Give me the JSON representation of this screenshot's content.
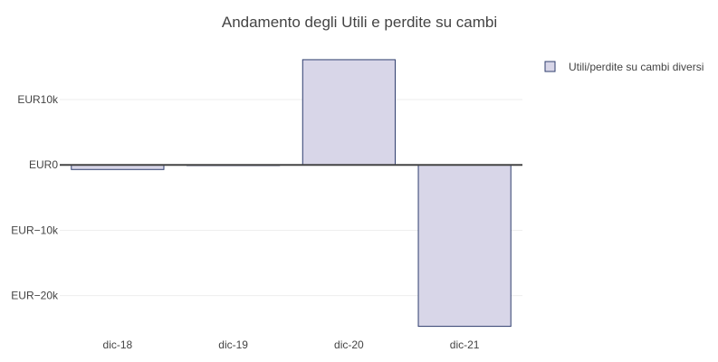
{
  "chart_data": {
    "type": "bar",
    "title": "Andamento degli Utili e perdite su cambi",
    "categories": [
      "dic-18",
      "dic-19",
      "dic-20",
      "dic-21"
    ],
    "series": [
      {
        "name": "Utili/perdite su cambi diversi",
        "values": [
          -700,
          -100,
          16100,
          -24700
        ],
        "fill": "#d8d6e8",
        "stroke": "#2f3e6e"
      }
    ],
    "ylim": [
      -26000,
      19000
    ],
    "yticks": [
      10000,
      0,
      -10000,
      -20000
    ],
    "ytick_labels": [
      "EUR10k",
      "EUR0",
      "EUR−10k",
      "EUR−20k"
    ],
    "xlabel": "",
    "ylabel": "",
    "grid": true,
    "legend_position": "top-right"
  }
}
